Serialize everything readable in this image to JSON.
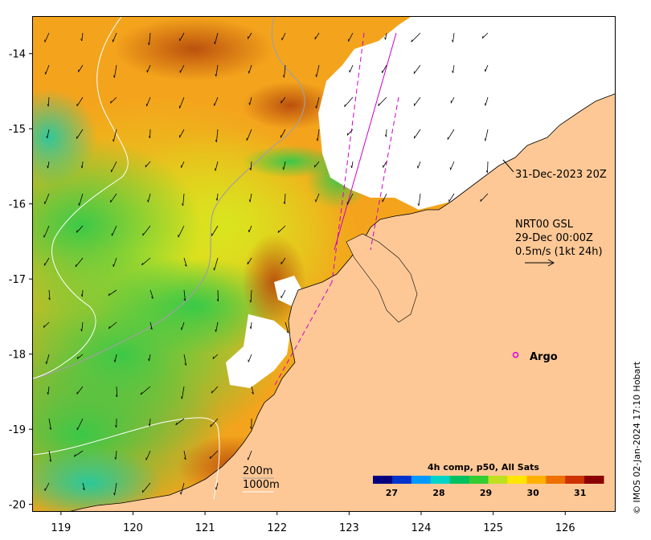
{
  "map": {
    "lat_ticks": [
      "-14",
      "-15",
      "-16",
      "-17",
      "-18",
      "-19",
      "-20"
    ],
    "lon_ticks": [
      "119",
      "120",
      "121",
      "122",
      "123",
      "124",
      "125",
      "126"
    ],
    "lat_range": [
      -20.1,
      -13.5
    ],
    "lon_range": [
      118.6,
      126.7
    ],
    "land_color": "#fdc896",
    "cloud_color": "#ffffff"
  },
  "annotations": {
    "pass_time": "31-Dec-2023 20Z",
    "current_product": "NRT00 GSL",
    "current_time": "29-Dec 00:00Z",
    "current_scale": "0.5m/s (1kt 24h)",
    "argo_label": "Argo",
    "isobath_200": "200m",
    "isobath_1000": "1000m"
  },
  "colorbar": {
    "title": "4h comp, p50, All Sats",
    "ticks": [
      "27",
      "28",
      "29",
      "30",
      "31"
    ],
    "range": [
      26.6,
      31.5
    ],
    "colors": [
      "#00007f",
      "#0033cc",
      "#0099ff",
      "#00d4c8",
      "#00c060",
      "#33cc33",
      "#bfe020",
      "#ffe600",
      "#ffb000",
      "#ee7000",
      "#cc3300",
      "#8b0000"
    ]
  },
  "credit": "© IMOS 02-Jan-2024 17:10 Hobart",
  "argo_float": {
    "lon": 125.3,
    "lat": -18.0,
    "color": "#e000e0"
  }
}
